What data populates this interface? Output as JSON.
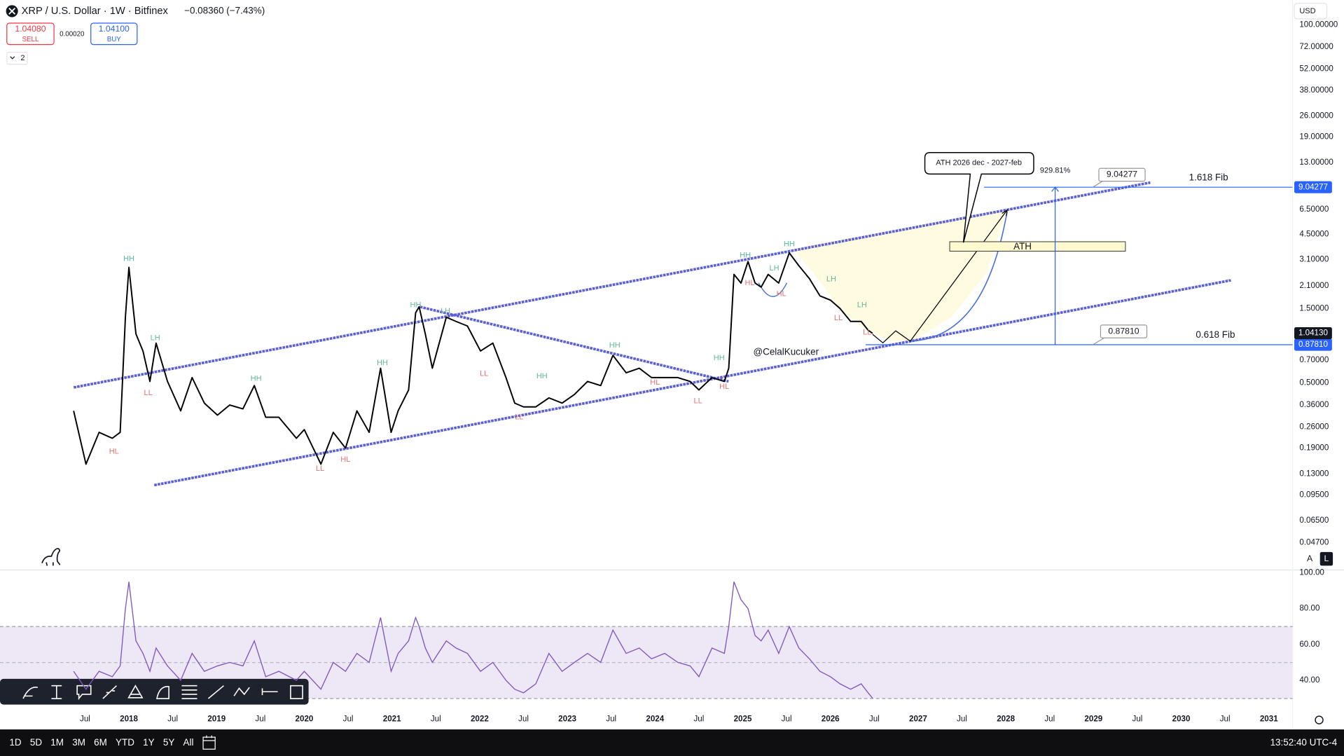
{
  "ui": {
    "symbol": "XRP / U.S. Dollar · 1W · Bitfinex",
    "change": "−0.08360 (−7.43%)",
    "sell_price": "1.04080",
    "sell": "SELL",
    "spread": "0.00020",
    "buy_price": "1.04100",
    "buy": "BUY",
    "indicators_count": "2",
    "currency": "USD",
    "scale_buttons": [
      "A",
      "L"
    ],
    "ranges": [
      "1D",
      "5D",
      "1M",
      "3M",
      "6M",
      "YTD",
      "1Y",
      "5Y",
      "All"
    ],
    "clock": "13:52:40 UTC-4"
  },
  "chart_data": {
    "type": "line",
    "log_scale": true,
    "color": "#000000",
    "x": [
      2017.37,
      2017.51,
      2017.66,
      2017.81,
      2017.9,
      2017.96,
      2018.0,
      2018.08,
      2018.16,
      2018.24,
      2018.31,
      2018.44,
      2018.59,
      2018.72,
      2018.86,
      2019.01,
      2019.15,
      2019.3,
      2019.43,
      2019.56,
      2019.71,
      2019.91,
      2020.0,
      2020.19,
      2020.33,
      2020.47,
      2020.6,
      2020.74,
      2020.87,
      2020.99,
      2021.07,
      2021.19,
      2021.27,
      2021.31,
      2021.38,
      2021.46,
      2021.62,
      2021.73,
      2021.86,
      2022.01,
      2022.15,
      2022.3,
      2022.4,
      2022.5,
      2022.64,
      2022.79,
      2022.94,
      2023.08,
      2023.23,
      2023.38,
      2023.52,
      2023.67,
      2023.82,
      2023.96,
      2024.11,
      2024.26,
      2024.4,
      2024.5,
      2024.65,
      2024.79,
      2024.84,
      2024.9,
      2024.98,
      2025.06,
      2025.14,
      2025.21,
      2025.29,
      2025.41,
      2025.53,
      2025.64,
      2025.76,
      2025.88,
      2026.0,
      2026.11,
      2026.23,
      2026.35,
      2026.43,
      2026.48
    ],
    "values": [
      0.33,
      0.15,
      0.24,
      0.22,
      0.24,
      1.32,
      2.76,
      1.03,
      0.8,
      0.51,
      0.9,
      0.51,
      0.33,
      0.54,
      0.37,
      0.31,
      0.36,
      0.34,
      0.48,
      0.3,
      0.3,
      0.22,
      0.25,
      0.15,
      0.24,
      0.19,
      0.33,
      0.24,
      0.62,
      0.24,
      0.33,
      0.45,
      1.41,
      1.54,
      1.03,
      0.62,
      1.32,
      1.24,
      1.16,
      0.8,
      0.9,
      0.54,
      0.37,
      0.35,
      0.35,
      0.4,
      0.37,
      0.42,
      0.51,
      0.48,
      0.75,
      0.58,
      0.62,
      0.54,
      0.54,
      0.54,
      0.51,
      0.45,
      0.54,
      0.51,
      0.62,
      2.49,
      2.19,
      3.01,
      2.19,
      2.06,
      2.49,
      2.19,
      3.42,
      2.83,
      2.34,
      1.81,
      1.7,
      1.5,
      1.24,
      1.24,
      1.09,
      1.04
    ],
    "xlim": [
      2016.53,
      2031.27
    ],
    "xticks": [
      {
        "value": 2017.5,
        "label": "Jul"
      },
      2018,
      {
        "value": 2018.5,
        "label": "Jul"
      },
      2019,
      {
        "value": 2019.5,
        "label": "Jul"
      },
      2020,
      {
        "value": 2020.5,
        "label": "Jul"
      },
      2021,
      {
        "value": 2021.5,
        "label": "Jul"
      },
      2022,
      {
        "value": 2022.5,
        "label": "Jul"
      },
      2023,
      {
        "value": 2023.5,
        "label": "Jul"
      },
      2024,
      {
        "value": 2024.5,
        "label": "Jul"
      },
      2025,
      {
        "value": 2025.5,
        "label": "Jul"
      },
      2026,
      {
        "value": 2026.5,
        "label": "Jul"
      },
      2027,
      {
        "value": 2027.5,
        "label": "Jul"
      },
      2028,
      {
        "value": 2028.5,
        "label": "Jul"
      },
      2029,
      {
        "value": 2029.5,
        "label": "Jul"
      },
      2030,
      {
        "value": 2030.5,
        "label": "Jul"
      },
      2031
    ],
    "ylim": [
      0.0325,
      115
    ],
    "yticks": [
      {
        "value": 100,
        "label": "100.00000"
      },
      {
        "value": 72,
        "label": "72.00000"
      },
      {
        "value": 52,
        "label": "52.00000"
      },
      {
        "value": 38,
        "label": "38.00000"
      },
      {
        "value": 26,
        "label": "26.00000"
      },
      {
        "value": 19,
        "label": "19.00000"
      },
      {
        "value": 13,
        "label": "13.00000"
      },
      {
        "value": 6.5,
        "label": "6.50000"
      },
      {
        "value": 4.5,
        "label": "4.50000"
      },
      {
        "value": 3.1,
        "label": "3.10000"
      },
      {
        "value": 2.1,
        "label": "2.10000"
      },
      {
        "value": 1.5,
        "label": "1.50000"
      },
      {
        "value": 0.7,
        "label": "0.70000"
      },
      {
        "value": 0.5,
        "label": "0.50000"
      },
      {
        "value": 0.36,
        "label": "0.36000"
      },
      {
        "value": 0.26,
        "label": "0.26000"
      },
      {
        "value": 0.19,
        "label": "0.19000"
      },
      {
        "value": 0.13,
        "label": "0.13000"
      },
      {
        "value": 0.095,
        "label": "0.09500"
      },
      {
        "value": 0.065,
        "label": "0.06500"
      },
      {
        "value": 0.047,
        "label": "0.04700"
      }
    ],
    "last_price": {
      "value": 1.0413,
      "label": "1.04130"
    },
    "fib_levels": [
      {
        "name": "1.618 Fib",
        "value": 9.04277,
        "label": "9.04277"
      },
      {
        "name": "0.618 Fib",
        "value": 0.8781,
        "label": "0.87810"
      }
    ],
    "fib_move": "929.81%",
    "notes": {
      "callout": "ATH 2026 dec - 2027-feb",
      "zone": "ATH",
      "author": "@CelalKucuker"
    },
    "annotations": [
      {
        "text": "HH",
        "x": 2018.0,
        "y": 3.13,
        "color": "#5fb89a"
      },
      {
        "text": "LH",
        "x": 2018.3,
        "y": 0.97,
        "color": "#5fb89a"
      },
      {
        "text": "LL",
        "x": 2018.22,
        "y": 0.43,
        "color": "#e57373"
      },
      {
        "text": "HL",
        "x": 2017.83,
        "y": 0.18,
        "color": "#e57373"
      },
      {
        "text": "HH",
        "x": 2019.45,
        "y": 0.53,
        "color": "#5fb89a"
      },
      {
        "text": "LL",
        "x": 2020.18,
        "y": 0.14,
        "color": "#e57373"
      },
      {
        "text": "HL",
        "x": 2020.47,
        "y": 0.16,
        "color": "#e57373"
      },
      {
        "text": "HH",
        "x": 2020.89,
        "y": 0.67,
        "color": "#5fb89a"
      },
      {
        "text": "HH",
        "x": 2021.27,
        "y": 1.58,
        "color": "#5fb89a"
      },
      {
        "text": "LH",
        "x": 2021.61,
        "y": 1.44,
        "color": "#5fb89a"
      },
      {
        "text": "LL",
        "x": 2022.05,
        "y": 0.57,
        "color": "#e57373"
      },
      {
        "text": "LL",
        "x": 2022.45,
        "y": 0.3,
        "color": "#e57373"
      },
      {
        "text": "HH",
        "x": 2022.71,
        "y": 0.55,
        "color": "#5fb89a"
      },
      {
        "text": "HH",
        "x": 2023.54,
        "y": 0.87,
        "color": "#5fb89a"
      },
      {
        "text": "HL",
        "x": 2024.0,
        "y": 0.5,
        "color": "#e57373"
      },
      {
        "text": "LL",
        "x": 2024.49,
        "y": 0.38,
        "color": "#e57373"
      },
      {
        "text": "HH",
        "x": 2024.73,
        "y": 0.72,
        "color": "#5fb89a"
      },
      {
        "text": "HL",
        "x": 2024.79,
        "y": 0.47,
        "color": "#e57373"
      },
      {
        "text": "HH",
        "x": 2025.03,
        "y": 3.29,
        "color": "#5fb89a"
      },
      {
        "text": "HH",
        "x": 2025.53,
        "y": 3.88,
        "color": "#5fb89a"
      },
      {
        "text": "LH",
        "x": 2025.36,
        "y": 2.72,
        "color": "#5fb89a"
      },
      {
        "text": "HL",
        "x": 2025.08,
        "y": 2.19,
        "color": "#e57373"
      },
      {
        "text": "HL",
        "x": 2025.44,
        "y": 1.86,
        "color": "#e57373"
      },
      {
        "text": "LH",
        "x": 2026.01,
        "y": 2.31,
        "color": "#5fb89a"
      },
      {
        "text": "LH",
        "x": 2026.36,
        "y": 1.58,
        "color": "#5fb89a"
      },
      {
        "text": "LL",
        "x": 2026.09,
        "y": 1.3,
        "color": "#e57373"
      },
      {
        "text": "LL",
        "x": 2026.42,
        "y": 1.05,
        "color": "#e57373"
      }
    ],
    "rsi": {
      "color": "#7e57c2",
      "values": [
        45,
        35,
        45,
        42,
        48,
        80,
        95,
        62,
        55,
        45,
        58,
        48,
        40,
        55,
        45,
        48,
        50,
        48,
        62,
        42,
        45,
        40,
        45,
        35,
        50,
        45,
        55,
        50,
        75,
        45,
        55,
        62,
        75,
        70,
        58,
        50,
        62,
        58,
        55,
        45,
        50,
        40,
        35,
        33,
        38,
        55,
        45,
        50,
        55,
        50,
        68,
        55,
        58,
        52,
        55,
        50,
        48,
        42,
        58,
        55,
        70,
        95,
        85,
        80,
        65,
        62,
        68,
        55,
        70,
        58,
        52,
        45,
        42,
        38,
        35,
        38,
        33,
        30
      ],
      "ylim": [
        25,
        103
      ],
      "yticks": [
        {
          "value": 100,
          "label": "100.00"
        },
        {
          "value": 80,
          "label": "80.00"
        },
        {
          "value": 60,
          "label": "60.00"
        },
        {
          "value": 40,
          "label": "40.00"
        }
      ]
    }
  }
}
